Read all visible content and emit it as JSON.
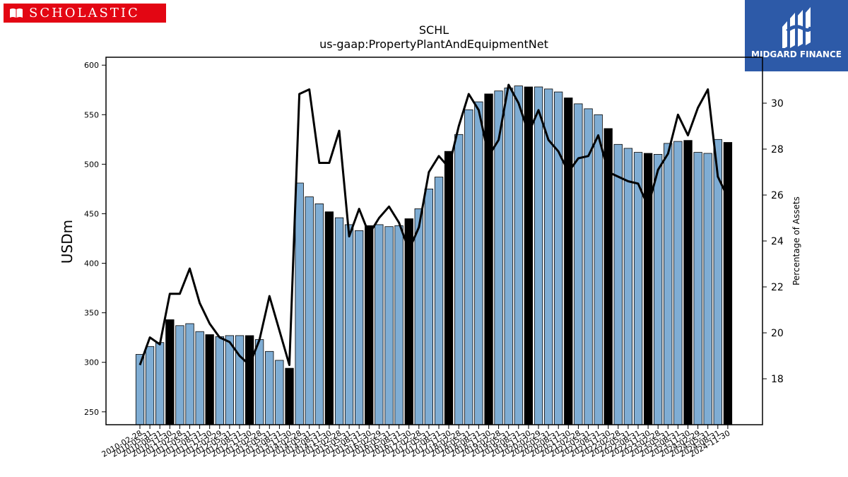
{
  "branding": {
    "company_logo": "SCHOLASTIC",
    "company_icon": "open-book-icon",
    "provider_logo": "MIDGARD FINANCE",
    "provider_icon": "midgard-finance-mark-icon"
  },
  "chart_data": {
    "type": "bar",
    "title": "SCHL",
    "subtitle": "us-gaap:PropertyPlantAndEquipmentNet",
    "ylabel": "USDm",
    "ylabel_right": "Percentage of Assets",
    "ylim": [
      237,
      608
    ],
    "ylim_right": [
      16,
      32
    ],
    "yticks": [
      250,
      300,
      350,
      400,
      450,
      500,
      550,
      600
    ],
    "yticks_right": [
      18,
      20,
      22,
      24,
      26,
      28,
      30
    ],
    "grid": false,
    "bar_color": "#7fadd4",
    "highlight_color": "#000000",
    "line_color": "#000000",
    "categories": [
      "2010-02-28",
      "2010-05-31",
      "2010-08-31",
      "2010-11-30",
      "2011-02-28",
      "2011-05-31",
      "2011-08-31",
      "2011-11-30",
      "2012-02-29",
      "2012-05-31",
      "2012-08-31",
      "2012-11-30",
      "2013-02-28",
      "2013-05-31",
      "2013-08-31",
      "2013-11-30",
      "2014-02-28",
      "2014-05-31",
      "2014-08-31",
      "2014-11-30",
      "2015-02-28",
      "2015-05-31",
      "2015-08-31",
      "2015-11-30",
      "2016-02-29",
      "2016-05-31",
      "2016-08-31",
      "2016-11-30",
      "2017-02-28",
      "2017-05-31",
      "2017-08-31",
      "2017-11-30",
      "2018-02-28",
      "2018-05-31",
      "2018-08-31",
      "2018-11-30",
      "2019-02-28",
      "2019-05-31",
      "2019-08-31",
      "2019-11-30",
      "2020-02-29",
      "2020-05-31",
      "2020-08-31",
      "2020-11-30",
      "2021-02-28",
      "2021-05-31",
      "2021-08-31",
      "2021-11-30",
      "2022-02-28",
      "2022-05-31",
      "2022-08-31",
      "2022-11-30",
      "2023-02-28",
      "2023-05-31",
      "2023-08-31",
      "2023-11-30",
      "2024-02-29",
      "2024-05-31",
      "2024-08-31",
      "2024-11-30"
    ],
    "series": [
      {
        "name": "",
        "axis": "left",
        "type": "bar",
        "values": [
          308,
          316,
          320,
          343,
          337,
          339,
          331,
          328,
          326,
          327,
          327,
          327,
          323,
          311,
          302,
          294,
          481,
          467,
          460,
          452,
          446,
          439,
          433,
          438,
          439,
          437,
          438,
          445,
          455,
          475,
          487,
          513,
          530,
          555,
          563,
          571,
          574,
          577,
          579,
          578,
          578,
          576,
          573,
          567,
          561,
          556,
          550,
          536,
          520,
          516,
          512,
          511,
          510,
          521,
          523,
          524,
          512,
          511,
          525,
          522
        ],
        "highlighted": [
          false,
          false,
          false,
          true,
          false,
          false,
          false,
          true,
          false,
          false,
          false,
          true,
          false,
          false,
          false,
          true,
          false,
          false,
          false,
          true,
          false,
          false,
          false,
          true,
          false,
          false,
          false,
          true,
          false,
          false,
          false,
          true,
          false,
          false,
          false,
          true,
          false,
          false,
          false,
          true,
          false,
          false,
          false,
          true,
          false,
          false,
          false,
          true,
          false,
          false,
          false,
          true,
          false,
          false,
          false,
          true,
          false,
          false,
          false,
          true
        ]
      },
      {
        "name": "",
        "axis": "right",
        "type": "line",
        "values": [
          18.6,
          19.8,
          19.5,
          21.7,
          21.7,
          22.8,
          21.3,
          20.4,
          19.8,
          19.6,
          19.0,
          18.6,
          19.7,
          21.6,
          20.1,
          18.6,
          30.4,
          30.6,
          27.4,
          27.4,
          28.8,
          24.2,
          25.4,
          24.3,
          25.0,
          25.5,
          24.8,
          23.6,
          24.6,
          27.0,
          27.7,
          27.2,
          29.0,
          30.4,
          29.7,
          27.7,
          28.4,
          30.8,
          30.0,
          28.7,
          29.7,
          28.4,
          27.9,
          27.0,
          27.6,
          27.7,
          28.6,
          27.0,
          26.8,
          26.6,
          26.5,
          25.5,
          27.1,
          27.8,
          29.5,
          28.6,
          29.8,
          30.6,
          26.8,
          25.9
        ]
      }
    ]
  }
}
